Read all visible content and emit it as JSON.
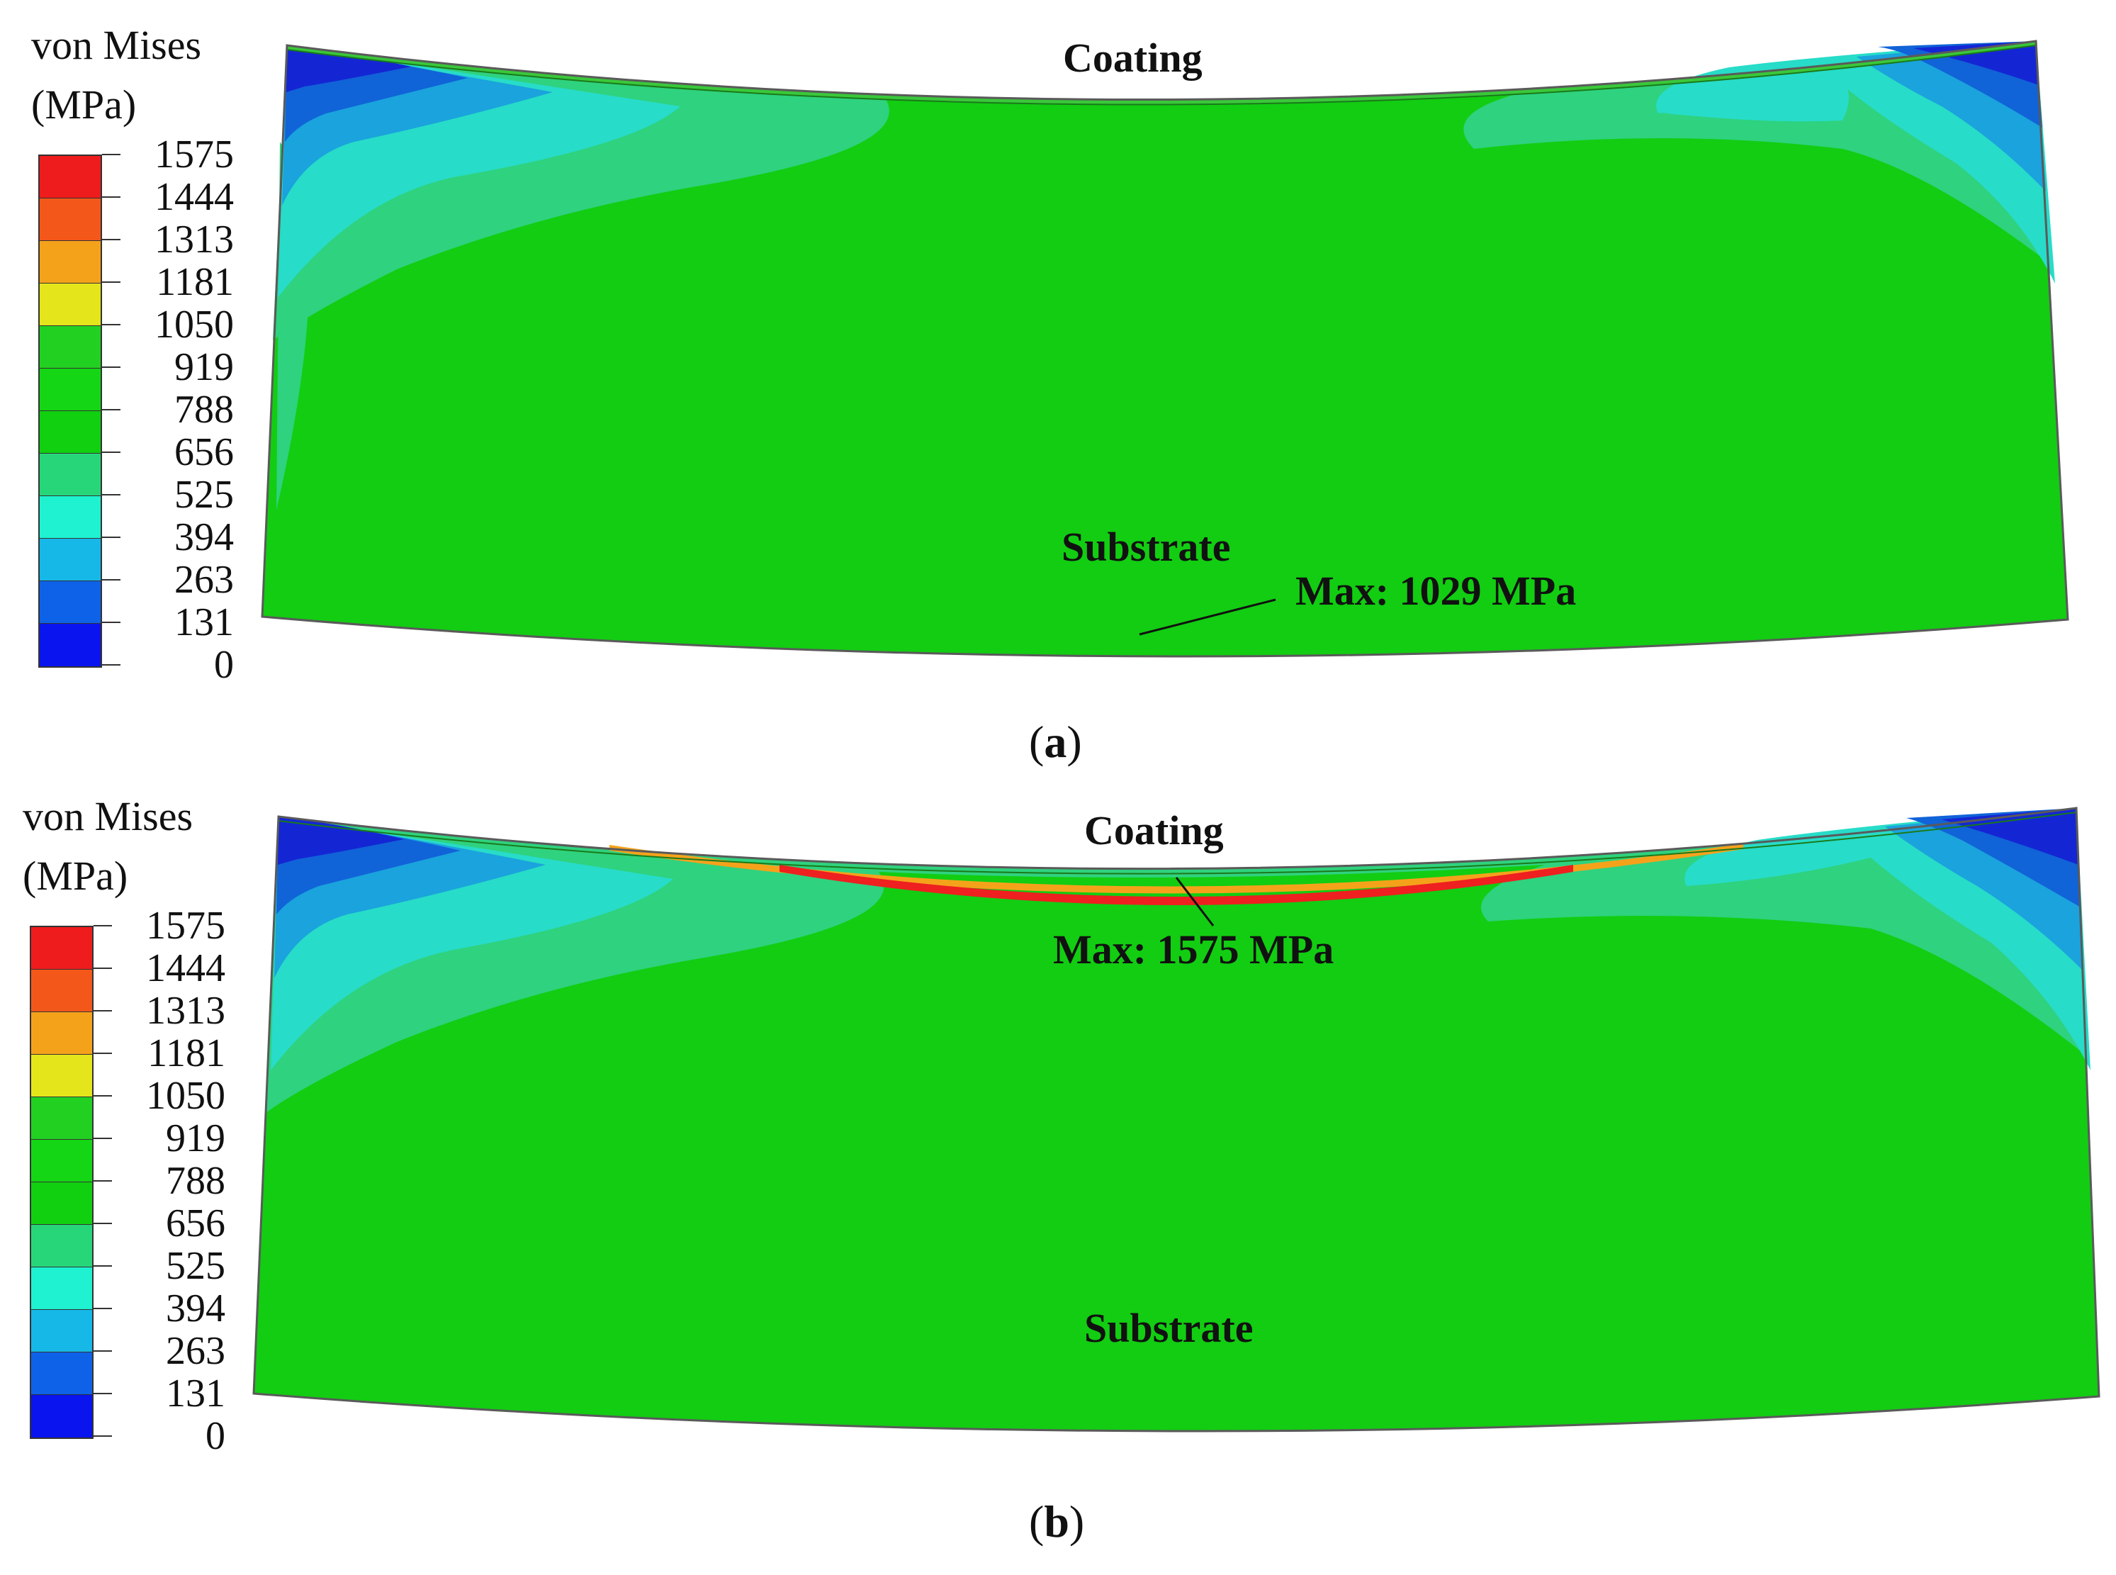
{
  "legend": {
    "title_line1": "von Mises",
    "title_line2": "(MPa)",
    "ticks": [
      "1575",
      "1444",
      "1313",
      "1181",
      "1050",
      "919",
      "788",
      "656",
      "525",
      "394",
      "263",
      "131",
      "0"
    ],
    "band_colors": [
      "#ee1c1c",
      "#f4571a",
      "#f5a21b",
      "#e5e51b",
      "#22d022",
      "#14d614",
      "#10d010",
      "#28d67a",
      "#1ef2d0",
      "#16b8e8",
      "#0e62e8",
      "#0a14ee"
    ]
  },
  "colors": {
    "substrate": "#12cd12",
    "mid_green": "#2fd27e",
    "cyan": "#27dcc8",
    "light_blue": "#1aa3dd",
    "blue": "#1163d8",
    "deep_blue": "#1426d4",
    "coating_hot": "#ee2020"
  },
  "panels": [
    {
      "caption_open": "(",
      "caption_letter": "a",
      "caption_close": ")",
      "coating_label": "Coating",
      "substrate_label": "Substrate",
      "max_label": "Max: 1029 MPa"
    },
    {
      "caption_open": "(",
      "caption_letter": "b",
      "caption_close": ")",
      "coating_label": "Coating",
      "substrate_label": "Substrate",
      "max_label": "Max: 1575 MPa"
    }
  ]
}
